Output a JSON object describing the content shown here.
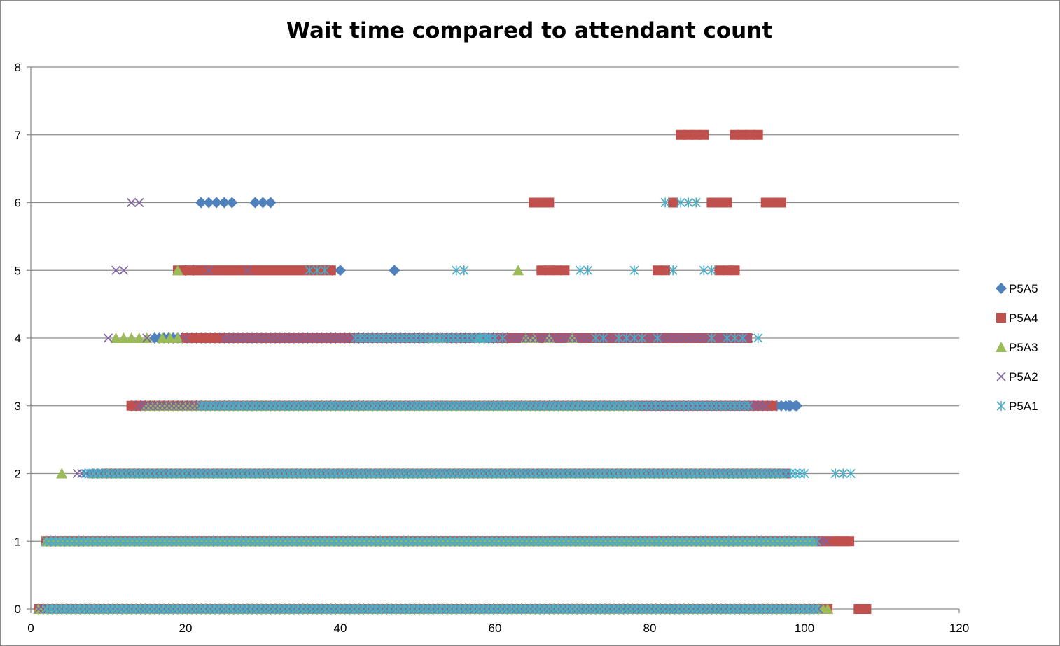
{
  "chart_data": {
    "type": "scatter",
    "title": "Wait time compared to attendant count",
    "xlabel": "",
    "ylabel": "",
    "xlim": [
      0,
      120
    ],
    "ylim": [
      0,
      8
    ],
    "x_ticks": [
      "0",
      "20",
      "40",
      "60",
      "80",
      "100",
      "120"
    ],
    "y_ticks": [
      "0",
      "1",
      "2",
      "3",
      "4",
      "5",
      "6",
      "7",
      "8"
    ],
    "grid": "horizontal",
    "legend_position": "right",
    "series": [
      {
        "name": "P5A5",
        "color": "#4f81bd",
        "marker": "diamond",
        "runs": [
          {
            "y": 0,
            "x": [
              1,
              102
            ]
          },
          {
            "y": 1,
            "x": [
              2,
              99
            ]
          },
          {
            "y": 2,
            "x": [
              8,
              97
            ]
          },
          {
            "y": 3,
            "x": [
              13,
              99
            ]
          },
          {
            "y": 4,
            "x": [
              16,
              62
            ]
          }
        ],
        "points": [
          {
            "y": 6,
            "x": [
              22,
              23,
              24,
              25,
              26,
              29,
              30,
              31
            ]
          },
          {
            "y": 5,
            "x": [
              20,
              21,
              39,
              40,
              47
            ]
          },
          {
            "y": 3,
            "x": [
              98,
              99
            ]
          }
        ]
      },
      {
        "name": "P5A4",
        "color": "#c0504d",
        "marker": "square",
        "runs": [
          {
            "y": 0,
            "x": [
              1,
              103
            ]
          },
          {
            "y": 1,
            "x": [
              2,
              106
            ]
          },
          {
            "y": 2,
            "x": [
              10,
              98
            ]
          },
          {
            "y": 3,
            "x": [
              13,
              96
            ]
          },
          {
            "y": 4,
            "x": [
              20,
              93
            ]
          },
          {
            "y": 5,
            "x": [
              19,
              39
            ]
          }
        ],
        "points": [
          {
            "y": 0,
            "x": [
              107,
              108
            ]
          },
          {
            "y": 7,
            "x": [
              84,
              85,
              86,
              87,
              91,
              92,
              93,
              94
            ]
          },
          {
            "y": 6,
            "x": [
              65,
              66,
              67,
              83,
              88,
              89,
              90,
              95,
              96,
              97
            ]
          },
          {
            "y": 5,
            "x": [
              66,
              67,
              68,
              69,
              81,
              82,
              89,
              90,
              91
            ]
          },
          {
            "y": 4,
            "x": [
              64,
              65,
              66,
              68,
              69,
              70,
              71,
              74,
              79,
              80,
              81,
              87,
              90
            ]
          }
        ]
      },
      {
        "name": "P5A3",
        "color": "#9bbb59",
        "marker": "triangle",
        "runs": [
          {
            "y": 0,
            "x": [
              1,
              103
            ]
          },
          {
            "y": 1,
            "x": [
              2,
              101
            ]
          },
          {
            "y": 2,
            "x": [
              8,
              97
            ]
          },
          {
            "y": 3,
            "x": [
              15,
              78
            ]
          }
        ],
        "points": [
          {
            "y": 2,
            "x": [
              4
            ]
          },
          {
            "y": 4,
            "x": [
              11,
              12,
              13,
              14,
              15,
              17,
              18,
              19,
              52,
              53,
              58,
              64,
              65,
              67,
              70
            ]
          },
          {
            "y": 5,
            "x": [
              19,
              63
            ]
          }
        ]
      },
      {
        "name": "P5A2",
        "color": "#8064a2",
        "marker": "x",
        "runs": [
          {
            "y": 0,
            "x": [
              1,
              102
            ]
          },
          {
            "y": 1,
            "x": [
              2,
              103
            ]
          },
          {
            "y": 2,
            "x": [
              6,
              98
            ]
          },
          {
            "y": 3,
            "x": [
              14,
              95
            ]
          },
          {
            "y": 4,
            "x": [
              25,
              93
            ]
          }
        ],
        "points": [
          {
            "y": 6,
            "x": [
              13,
              14
            ]
          },
          {
            "y": 5,
            "x": [
              11,
              12,
              23,
              28,
              36,
              37,
              38
            ]
          },
          {
            "y": 4,
            "x": [
              10,
              15,
              20
            ]
          }
        ]
      },
      {
        "name": "P5A1",
        "color": "#4bacc6",
        "marker": "asterisk",
        "runs": [
          {
            "y": 0,
            "x": [
              2,
              102
            ]
          },
          {
            "y": 1,
            "x": [
              2,
              102
            ]
          },
          {
            "y": 2,
            "x": [
              7,
              100
            ]
          },
          {
            "y": 3,
            "x": [
              22,
              93
            ]
          },
          {
            "y": 4,
            "x": [
              42,
              60
            ]
          }
        ],
        "points": [
          {
            "y": 2,
            "x": [
              104,
              105,
              106
            ]
          },
          {
            "y": 6,
            "x": [
              82,
              84,
              85,
              86
            ]
          },
          {
            "y": 5,
            "x": [
              36,
              37,
              38,
              55,
              56,
              71,
              72,
              78,
              83,
              87,
              88
            ]
          },
          {
            "y": 4,
            "x": [
              57,
              58,
              59,
              61,
              73,
              74,
              76,
              77,
              78,
              79,
              81,
              88,
              90,
              91,
              92,
              94
            ]
          }
        ]
      }
    ]
  }
}
